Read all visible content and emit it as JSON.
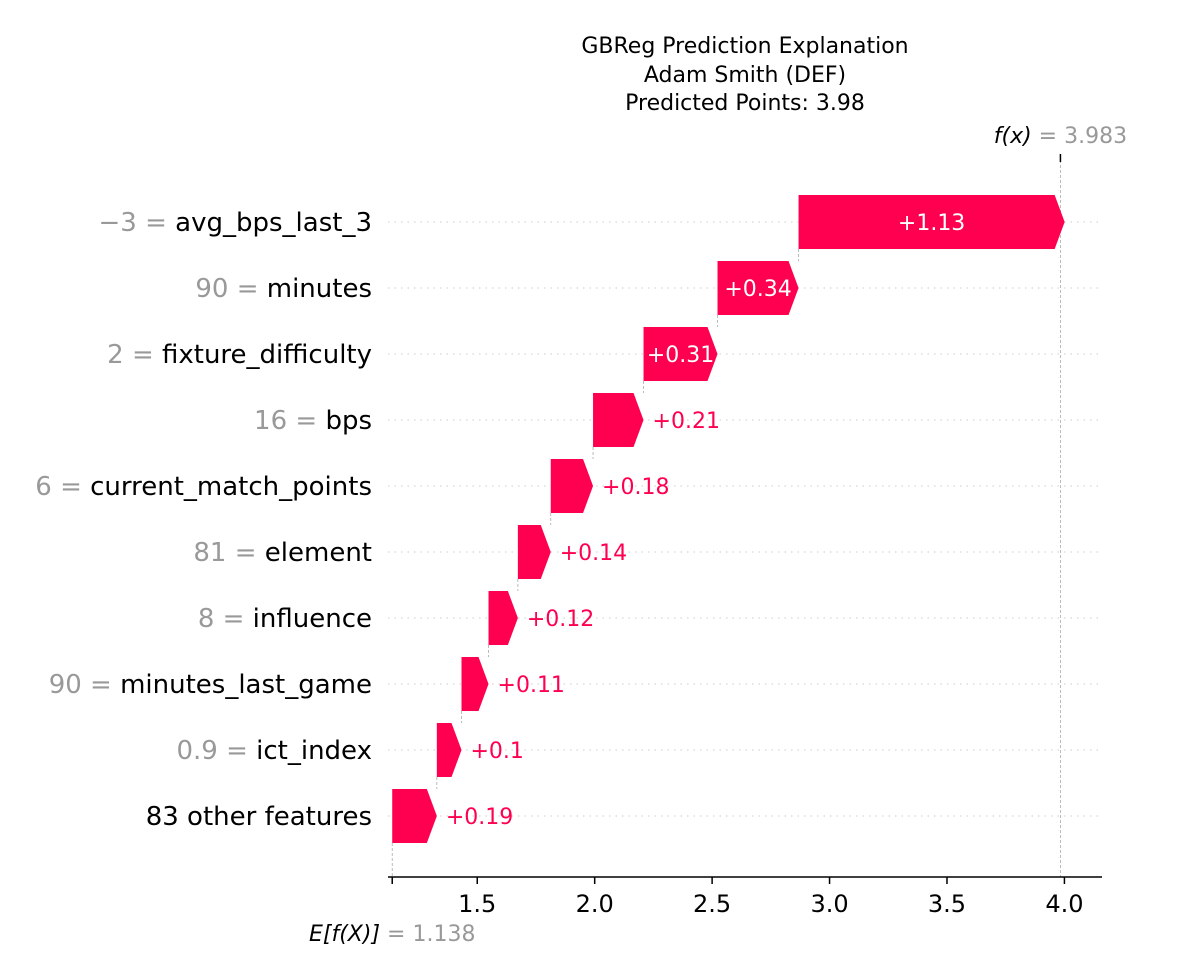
{
  "chart_data": {
    "type": "waterfall",
    "title_lines": [
      "GBReg Prediction Explanation",
      "Adam Smith (DEF)",
      "Predicted Points: 3.98"
    ],
    "base_value": 1.138,
    "base_value_text": "1.138",
    "base_label": "E[f(X)]",
    "output_value": 3.983,
    "output_value_text": "3.983",
    "output_label": "f(x)",
    "x_ticks": [
      1.5,
      2.0,
      2.5,
      3.0,
      3.5,
      4.0
    ],
    "x_tick_labels": [
      "1.5",
      "2.0",
      "2.5",
      "3.0",
      "3.5",
      "4.0"
    ],
    "xlim": [
      1.12,
      4.16
    ],
    "features": [
      {
        "value_text": "−3",
        "name": "avg_bps_last_3",
        "contribution": 1.133,
        "label": "+1.13"
      },
      {
        "value_text": "90",
        "name": "minutes",
        "contribution": 0.345,
        "label": "+0.34"
      },
      {
        "value_text": "2",
        "name": "fixture_difficulty",
        "contribution": 0.315,
        "label": "+0.31"
      },
      {
        "value_text": "16",
        "name": "bps",
        "contribution": 0.215,
        "label": "+0.21"
      },
      {
        "value_text": "6",
        "name": "current_match_points",
        "contribution": 0.18,
        "label": "+0.18"
      },
      {
        "value_text": "81",
        "name": "element",
        "contribution": 0.14,
        "label": "+0.14"
      },
      {
        "value_text": "8",
        "name": "influence",
        "contribution": 0.125,
        "label": "+0.12"
      },
      {
        "value_text": "90",
        "name": "minutes_last_game",
        "contribution": 0.115,
        "label": "+0.11"
      },
      {
        "value_text": "0.9",
        "name": "ict_index",
        "contribution": 0.105,
        "label": "+0.1"
      },
      {
        "value_text": "",
        "name": "83 other features",
        "contribution": 0.19,
        "label": "+0.19"
      }
    ],
    "positive_color": "#ff0051",
    "grid": "dotted-horizontal"
  }
}
